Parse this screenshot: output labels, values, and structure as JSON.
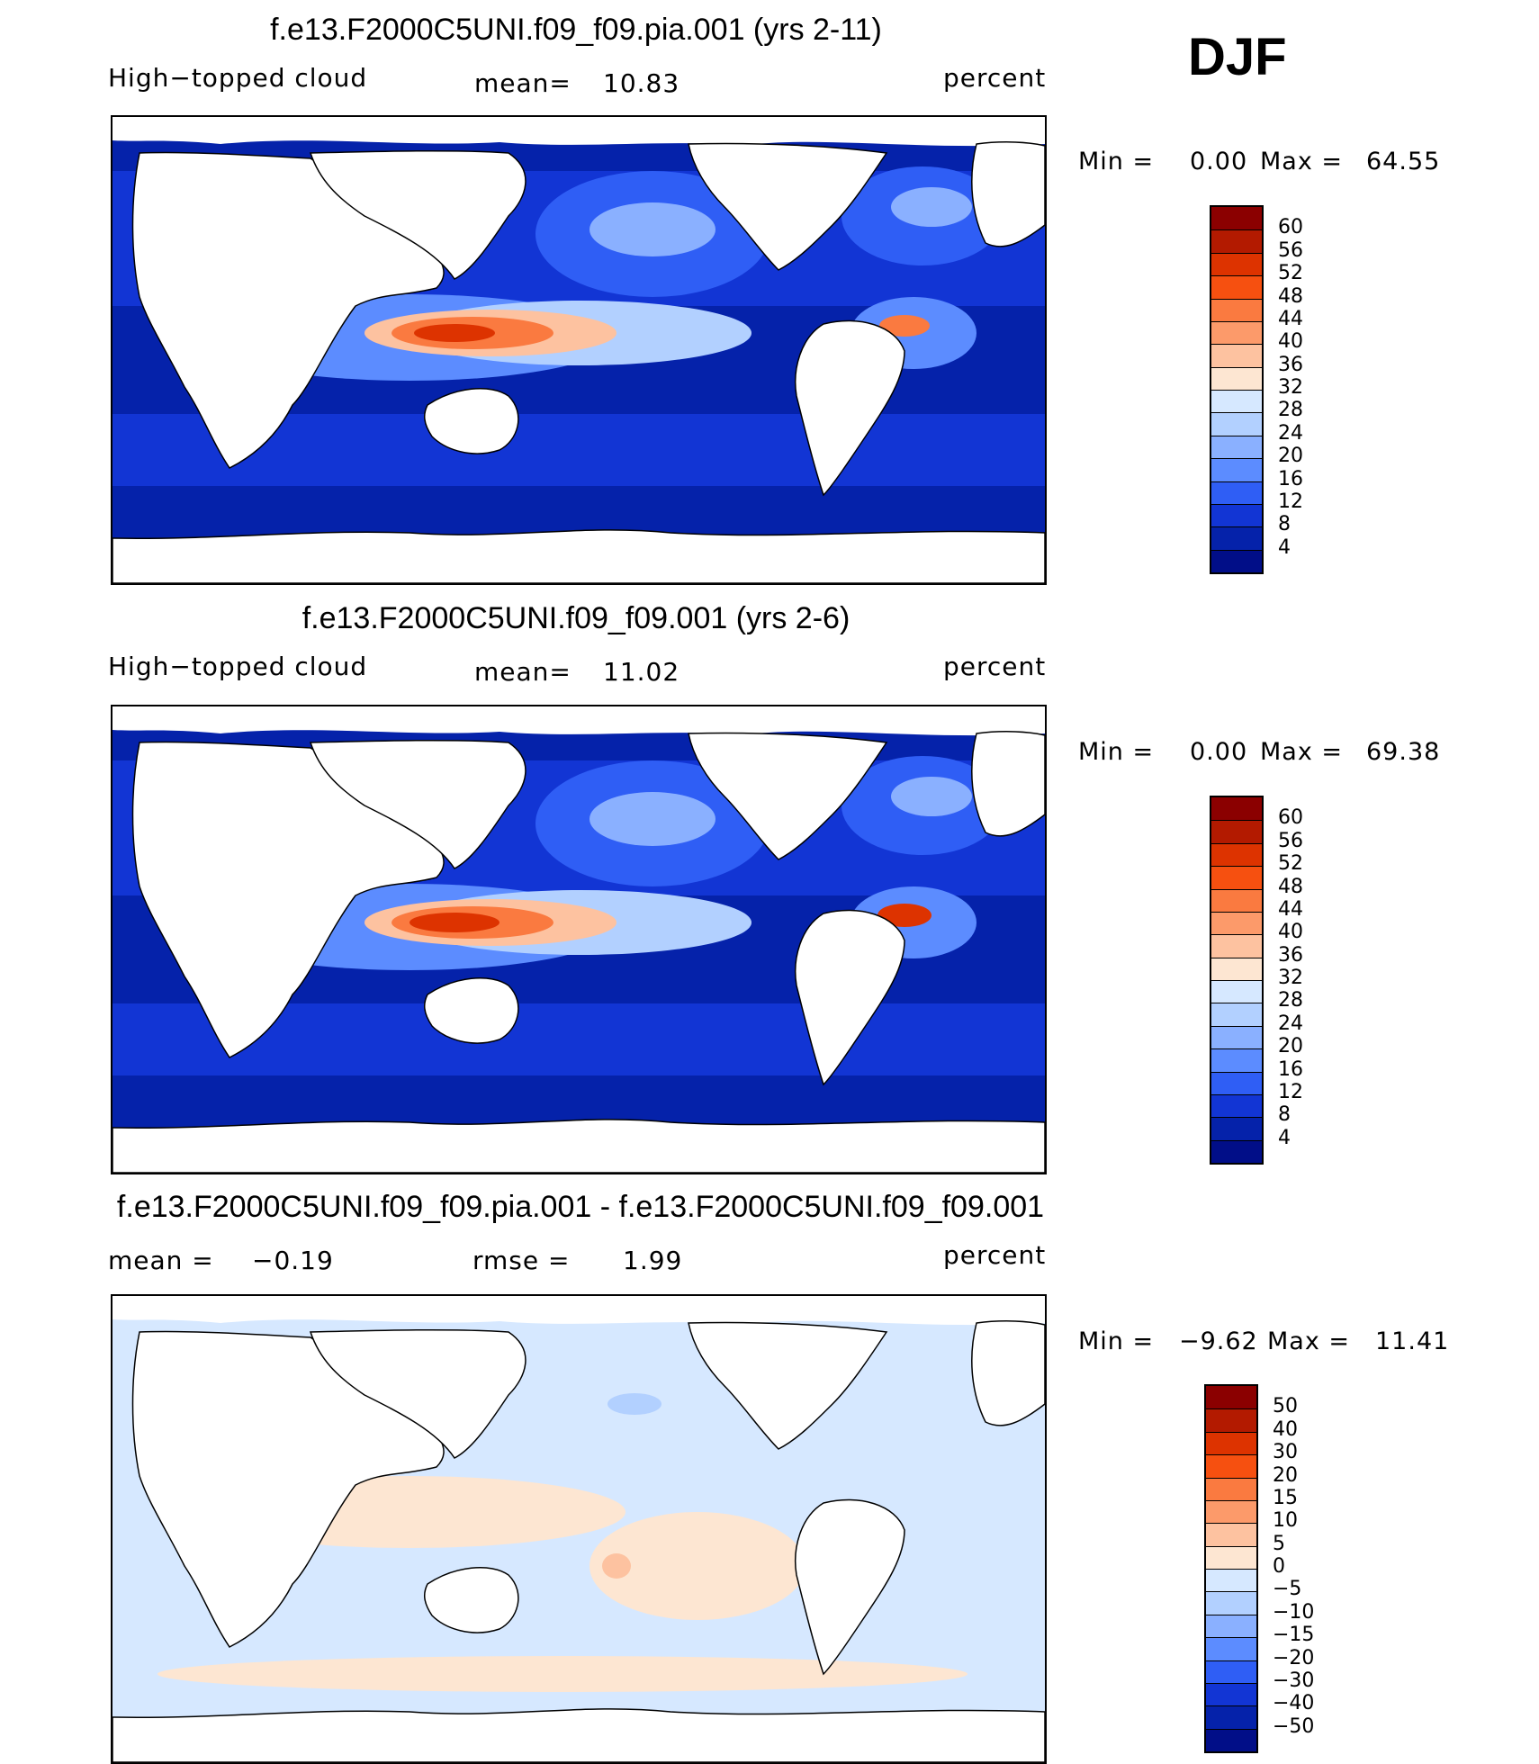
{
  "season": "DJF",
  "panels": [
    {
      "title": "f.e13.F2000C5UNI.f09_f09.pia.001 (yrs 2-11)",
      "left_label": "High−topped cloud",
      "mid_label": "mean=",
      "mid_value": "10.83",
      "units": "percent",
      "min_label": "Min =",
      "min_value": "0.00",
      "max_label": "Max =",
      "max_value": "64.55",
      "colorbar_ticks": [
        "60",
        "56",
        "52",
        "48",
        "44",
        "40",
        "36",
        "32",
        "28",
        "24",
        "20",
        "16",
        "12",
        "8",
        "4"
      ],
      "colorbar_colors": [
        "#8b0000",
        "#b31a00",
        "#dd3300",
        "#f65010",
        "#fa7a40",
        "#fc9a6a",
        "#fdc2a0",
        "#fde6d2",
        "#d6e8ff",
        "#b2d0ff",
        "#8ab0ff",
        "#5c8cff",
        "#2f5ef5",
        "#1235d4",
        "#0522aa",
        "#010e88"
      ]
    },
    {
      "title": "f.e13.F2000C5UNI.f09_f09.001 (yrs 2-6)",
      "left_label": "High−topped cloud",
      "mid_label": "mean=",
      "mid_value": "11.02",
      "units": "percent",
      "min_label": "Min =",
      "min_value": "0.00",
      "max_label": "Max =",
      "max_value": "69.38",
      "colorbar_ticks": [
        "60",
        "56",
        "52",
        "48",
        "44",
        "40",
        "36",
        "32",
        "28",
        "24",
        "20",
        "16",
        "12",
        "8",
        "4"
      ],
      "colorbar_colors": [
        "#8b0000",
        "#b31a00",
        "#dd3300",
        "#f65010",
        "#fa7a40",
        "#fc9a6a",
        "#fdc2a0",
        "#fde6d2",
        "#d6e8ff",
        "#b2d0ff",
        "#8ab0ff",
        "#5c8cff",
        "#2f5ef5",
        "#1235d4",
        "#0522aa",
        "#010e88"
      ]
    },
    {
      "title": "f.e13.F2000C5UNI.f09_f09.pia.001 - f.e13.F2000C5UNI.f09_f09.001",
      "left_label": "mean =",
      "left_value": "−0.19",
      "mid_label": "rmse =",
      "mid_value": "1.99",
      "units": "percent",
      "min_label": "Min =",
      "min_value": "−9.62",
      "max_label": "Max =",
      "max_value": "11.41",
      "colorbar_ticks": [
        "50",
        "40",
        "30",
        "20",
        "15",
        "10",
        "5",
        "0",
        "−5",
        "−10",
        "−15",
        "−20",
        "−30",
        "−40",
        "−50"
      ],
      "colorbar_colors": [
        "#8b0000",
        "#b31a00",
        "#dd3300",
        "#f65010",
        "#fa7a40",
        "#fc9a6a",
        "#fdc2a0",
        "#fde6d2",
        "#d6e8ff",
        "#b2d0ff",
        "#8ab0ff",
        "#5c8cff",
        "#2f5ef5",
        "#1235d4",
        "#0522aa",
        "#010e88"
      ]
    }
  ],
  "colors": {
    "land": "#ffffff",
    "ocean_low": "#010e88",
    "ocean_mid": "#2f5ef5",
    "ocean_high": "#8ab0ff",
    "warm_core": "#dd3300",
    "warm_mid": "#fa7a40",
    "warm_light": "#fdc2a0",
    "diff_cool": "#d6e8ff",
    "diff_warm": "#fde6d2"
  }
}
